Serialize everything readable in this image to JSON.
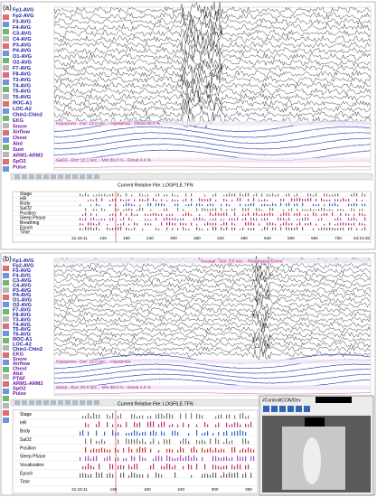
{
  "panels": [
    {
      "label": "(a)",
      "channels": [
        "Fp1-AVG",
        "Fp2-AVG",
        "F3-AVG",
        "F4-AVG",
        "C3-AVG",
        "C4-AVG",
        "P3-AVG",
        "P4-AVG",
        "O1-AVG",
        "O2-AVG",
        "F7-AVG",
        "F8-AVG",
        "T3-AVG",
        "T4-AVG",
        "T5-AVG",
        "T6-AVG",
        "ROC-A1",
        "LOC-A2",
        "Chin1-Chin2",
        "EKG",
        "Snore",
        "Airflow",
        "Chest",
        "Abd",
        "Sum",
        "ARM1-ARM2",
        "SpO2",
        "Pulse"
      ],
      "annotations": [
        "Hypopnea - Dur: 12.0 sec. - Hypopnea - Desat 90.0 %",
        "SaO2 - Dur: 12.1 sec. - Min 86.0 % - Desat 4.0 %"
      ],
      "file_title": "Current Relative File: LOGFILE.TFN",
      "summary_rows": [
        "Stage",
        "HR",
        "Body",
        "SaO2",
        "Position",
        "Sleep Phase",
        "Breathing",
        "Epoch",
        "Time"
      ],
      "time_labels": [
        "21:16:11",
        "120",
        "180",
        "240",
        "300",
        "360",
        "420",
        "480",
        "540",
        "600",
        "660",
        "720",
        "04:10:45"
      ]
    },
    {
      "label": "(b)",
      "channels": [
        "Fp1-AVG",
        "Fp2-AVG",
        "F3-AVG",
        "F4-AVG",
        "C3-AVG",
        "C4-AVG",
        "P3-AVG",
        "P4-AVG",
        "O1-AVG",
        "O2-AVG",
        "F7-AVG",
        "F8-AVG",
        "T3-AVG",
        "T4-AVG",
        "T5-AVG",
        "T6-AVG",
        "ROC-A1",
        "LOC-A2",
        "Chin1-Chin2",
        "EKG",
        "Snore",
        "Airflow",
        "Chest",
        "Abd",
        "PTAF",
        "ARM1-ARM2",
        "SpO2",
        "Pulse"
      ],
      "annotations": [
        "Arousal - Dur: 3.5 sec. - Respiratory Event",
        "Hypopnea - Dur: 18.0 sec. - Hypopnea",
        "SaO2 - Dur: 20.0 sec. - Min 88.0 % - Desat 4.0 %"
      ],
      "file_title": "Current Relative File: LOGFILE.TFN",
      "summary_rows": [
        "Stage",
        "HR",
        "Body",
        "SaO2",
        "Position",
        "Sleep Phase",
        "Vocalization",
        "Epoch",
        "Time"
      ],
      "time_labels": [
        "21:16:11",
        "120",
        "180",
        "240",
        "300",
        "360"
      ],
      "video_title": "#ControlitCON/Dev"
    }
  ]
}
